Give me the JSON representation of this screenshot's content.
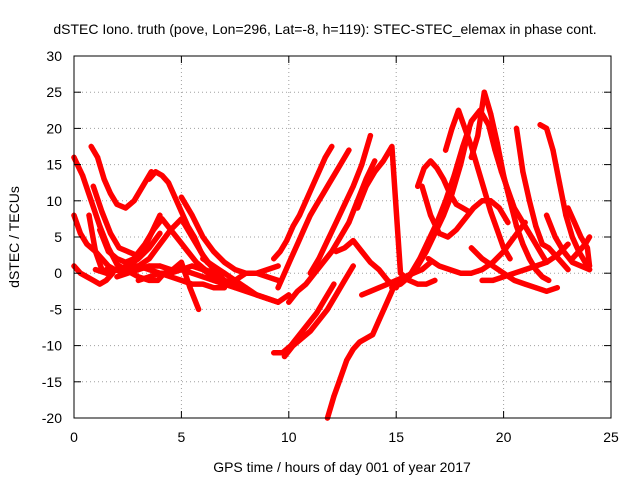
{
  "chart_data": {
    "type": "scatter",
    "title": "dSTEC Iono. truth (pove, Lon=296, Lat=-8, h=119): STEC-STEC_elemax in phase cont.",
    "xlabel": "GPS time / hours of day 001 of year 2017",
    "ylabel": "dSTEC  / TECUs",
    "xlim": [
      0,
      25
    ],
    "ylim": [
      -20,
      30
    ],
    "x_ticks": [
      0,
      5,
      10,
      15,
      20,
      25
    ],
    "y_ticks": [
      -20,
      -15,
      -10,
      -5,
      0,
      5,
      10,
      15,
      20,
      25,
      30
    ],
    "grid": true,
    "grid_style": "dotted",
    "marker": "plus",
    "color": "#ff0000",
    "series": [
      {
        "x": [
          0.0,
          0.4,
          0.8,
          1.2,
          1.6,
          2.0,
          2.5,
          3.0,
          3.5,
          3.9,
          4.2,
          4.6,
          5.0,
          5.4,
          5.8
        ],
        "values": [
          16.0,
          13.5,
          10.0,
          6.5,
          3.5,
          1.2,
          0.3,
          -0.5,
          -1.0,
          -1.0,
          0.0,
          0.5,
          1.5,
          -2.0,
          -5.0
        ]
      },
      {
        "x": [
          0.0,
          0.3,
          0.6,
          1.0,
          1.3,
          1.6,
          1.9,
          2.2
        ],
        "values": [
          8.0,
          5.5,
          4.0,
          3.0,
          2.0,
          1.0,
          0.5,
          0.2
        ]
      },
      {
        "x": [
          0.0,
          0.3,
          0.6,
          0.9,
          1.2,
          1.5,
          1.8
        ],
        "values": [
          1.0,
          0.0,
          -0.5,
          -1.0,
          -1.5,
          -1.0,
          0.0
        ]
      },
      {
        "x": [
          0.8,
          1.1,
          1.4,
          1.7,
          2.0,
          2.4,
          2.8,
          3.2,
          3.6
        ],
        "values": [
          17.5,
          16.0,
          13.0,
          11.0,
          9.5,
          9.0,
          10.0,
          12.0,
          14.0
        ]
      },
      {
        "x": [
          0.7,
          1.0,
          1.3,
          1.6,
          2.0,
          2.5,
          3.0,
          3.5,
          4.0
        ],
        "values": [
          8.0,
          3.0,
          0.5,
          0.0,
          0.5,
          1.0,
          2.0,
          3.5,
          5.5
        ]
      },
      {
        "x": [
          0.9,
          1.3,
          1.7,
          2.1,
          2.5,
          2.9,
          3.3,
          3.7,
          4.1,
          4.5,
          4.9,
          5.3,
          5.7,
          6.1,
          6.5
        ],
        "values": [
          12.0,
          8.5,
          5.5,
          3.5,
          3.0,
          2.5,
          4.0,
          6.0,
          7.5,
          6.0,
          4.5,
          3.0,
          1.5,
          0.5,
          0.0
        ]
      },
      {
        "x": [
          1.2,
          1.6,
          2.0,
          2.4,
          2.8,
          3.2,
          3.6,
          4.0
        ],
        "values": [
          6.0,
          3.0,
          2.0,
          1.5,
          2.0,
          3.0,
          5.5,
          8.0
        ]
      },
      {
        "x": [
          1.5,
          2.0,
          2.5,
          3.0,
          3.5,
          4.0,
          4.5,
          5.0,
          5.5,
          6.0,
          6.5,
          7.0
        ],
        "values": [
          0.5,
          0.5,
          1.0,
          1.0,
          0.5,
          0.0,
          -0.5,
          -1.0,
          -1.5,
          -1.5,
          -2.0,
          -2.0
        ]
      },
      {
        "x": [
          1.0,
          1.5,
          2.0,
          2.5,
          3.0,
          3.5,
          4.0,
          4.5,
          5.0,
          5.5,
          6.0,
          6.5,
          7.0,
          7.5,
          8.0
        ],
        "values": [
          0.5,
          0.0,
          0.5,
          0.5,
          1.0,
          2.0,
          4.0,
          6.0,
          7.5,
          5.0,
          2.5,
          0.5,
          -1.0,
          -1.5,
          -2.0
        ]
      },
      {
        "x": [
          3.5,
          3.8,
          4.1,
          4.4,
          4.7,
          5.0,
          5.3,
          5.6,
          5.9,
          6.2,
          6.6,
          7.0
        ],
        "values": [
          13.0,
          14.0,
          13.5,
          12.5,
          10.5,
          8.5,
          6.5,
          5.0,
          3.0,
          1.5,
          0.5,
          0.0
        ]
      },
      {
        "x": [
          2.0,
          2.5,
          3.0,
          3.5,
          4.0,
          4.5,
          5.0,
          5.5,
          6.0,
          6.5,
          7.0,
          7.5,
          8.0,
          8.5,
          9.0,
          9.5
        ],
        "values": [
          -0.5,
          0.0,
          0.5,
          1.0,
          1.0,
          0.5,
          0.5,
          0.0,
          -0.5,
          -1.0,
          -1.5,
          -1.0,
          0.0,
          0.0,
          -0.5,
          -1.0
        ]
      },
      {
        "x": [
          3.0,
          3.5,
          4.0,
          4.5,
          5.0,
          5.5,
          6.0,
          6.5,
          7.0,
          7.5,
          8.0,
          8.5,
          9.0,
          9.5
        ],
        "values": [
          -1.0,
          -0.5,
          0.0,
          0.0,
          0.5,
          1.0,
          0.5,
          -0.5,
          -1.5,
          -2.0,
          -2.5,
          -3.0,
          -3.5,
          -4.0
        ]
      },
      {
        "x": [
          5.0,
          5.5,
          6.0,
          6.5,
          7.0,
          7.5,
          8.0,
          8.5,
          9.0,
          9.5
        ],
        "values": [
          10.5,
          8.0,
          5.0,
          3.0,
          1.5,
          0.5,
          0.0,
          0.0,
          0.5,
          1.0
        ]
      },
      {
        "x": [
          6.0,
          6.5,
          7.0,
          7.5,
          8.0,
          8.5,
          9.0,
          9.5,
          10.0
        ],
        "values": [
          2.0,
          1.0,
          0.0,
          -1.0,
          -2.0,
          -3.0,
          -3.5,
          -4.0,
          -3.0
        ]
      },
      {
        "x": [
          9.3,
          9.6,
          9.9,
          10.2,
          10.5,
          10.8,
          11.1,
          11.4,
          11.7,
          12.0
        ],
        "values": [
          2.0,
          3.0,
          4.5,
          6.5,
          8.0,
          10.0,
          12.0,
          14.0,
          16.0,
          17.5
        ]
      },
      {
        "x": [
          9.5,
          9.8,
          10.1,
          10.4,
          10.7,
          11.0,
          11.3,
          11.6,
          11.9,
          12.2,
          12.5,
          12.8
        ],
        "values": [
          -2.0,
          0.0,
          2.0,
          4.0,
          6.0,
          8.0,
          9.5,
          11.0,
          12.5,
          14.0,
          15.5,
          17.0
        ]
      },
      {
        "x": [
          9.3,
          9.7,
          10.1,
          10.5,
          10.9,
          11.3,
          11.7,
          12.1
        ],
        "values": [
          -11.0,
          -11.0,
          -10.0,
          -8.5,
          -7.0,
          -5.5,
          -3.5,
          -1.5
        ]
      },
      {
        "x": [
          9.8,
          10.2,
          10.6,
          11.0,
          11.4,
          11.8,
          12.2,
          12.6,
          13.0
        ],
        "values": [
          -11.5,
          -10.0,
          -9.0,
          -8.0,
          -6.5,
          -5.0,
          -3.0,
          -1.0,
          1.0
        ]
      },
      {
        "x": [
          10.0,
          10.4,
          10.8,
          11.2,
          11.6,
          12.0,
          12.4,
          12.8,
          13.2,
          13.6,
          14.0
        ],
        "values": [
          -4.0,
          -2.5,
          -1.5,
          0.0,
          1.5,
          3.0,
          5.0,
          7.0,
          10.0,
          13.0,
          15.5
        ]
      },
      {
        "x": [
          11.0,
          11.4,
          11.8,
          12.2,
          12.6,
          13.0,
          13.4,
          13.8
        ],
        "values": [
          0.0,
          2.0,
          4.5,
          7.0,
          9.5,
          12.0,
          15.0,
          19.0
        ]
      },
      {
        "x": [
          11.8,
          12.1,
          12.4,
          12.7,
          13.0,
          13.3,
          13.6,
          13.9,
          14.2,
          14.5,
          14.8,
          15.0
        ],
        "values": [
          -20.0,
          -17.0,
          -14.5,
          -12.0,
          -10.5,
          -9.5,
          -9.0,
          -8.5,
          -6.5,
          -4.5,
          -2.5,
          -1.0
        ]
      },
      {
        "x": [
          12.2,
          12.6,
          13.0,
          13.4,
          13.8,
          14.2,
          14.6,
          15.0
        ],
        "values": [
          3.0,
          3.5,
          4.5,
          3.0,
          1.5,
          0.5,
          -1.0,
          -2.0
        ]
      },
      {
        "x": [
          13.4,
          13.8,
          14.2,
          14.6,
          15.0,
          15.4,
          15.8,
          16.2,
          16.6
        ],
        "values": [
          -3.0,
          -2.5,
          -2.0,
          -1.5,
          -1.0,
          -0.5,
          0.0,
          0.5,
          1.5
        ]
      },
      {
        "x": [
          13.2,
          13.6,
          14.0,
          14.4,
          14.8,
          15.2,
          15.6,
          16.0,
          16.4,
          16.8
        ],
        "values": [
          9.0,
          12.0,
          14.0,
          15.5,
          17.5,
          0.0,
          -1.0,
          -1.5,
          -1.5,
          -1.0
        ]
      },
      {
        "x": [
          14.8,
          15.2,
          15.6,
          16.0,
          16.4,
          16.8,
          17.2,
          17.6,
          18.0,
          18.4
        ],
        "values": [
          -2.0,
          -1.5,
          -0.5,
          1.0,
          3.0,
          5.5,
          8.0,
          11.0,
          15.0,
          20.0
        ]
      },
      {
        "x": [
          15.3,
          15.7,
          16.1,
          16.5,
          16.9,
          17.3,
          17.7,
          18.1,
          18.5,
          18.9
        ],
        "values": [
          -1.0,
          0.0,
          2.0,
          4.5,
          7.0,
          10.0,
          13.5,
          17.5,
          21.0,
          22.5
        ]
      },
      {
        "x": [
          16.0,
          16.3,
          16.6,
          16.9,
          17.2,
          17.5,
          17.8,
          18.1,
          18.4
        ],
        "values": [
          12.0,
          14.5,
          15.5,
          14.5,
          13.0,
          11.0,
          9.5,
          9.0,
          8.5
        ]
      },
      {
        "x": [
          16.2,
          16.6,
          17.0,
          17.4,
          17.8,
          18.2,
          18.6,
          19.0,
          19.4,
          19.8,
          20.2
        ],
        "values": [
          12.0,
          8.0,
          5.5,
          5.0,
          6.0,
          7.5,
          9.0,
          10.0,
          10.0,
          9.0,
          7.0
        ]
      },
      {
        "x": [
          16.5,
          17.0,
          17.5,
          18.0,
          18.5,
          19.0,
          19.5,
          20.0,
          20.5,
          21.0
        ],
        "values": [
          2.0,
          1.0,
          0.5,
          0.0,
          0.0,
          0.5,
          1.5,
          3.0,
          5.0,
          7.0
        ]
      },
      {
        "x": [
          17.3,
          17.6,
          17.9,
          18.2,
          18.5,
          18.8,
          19.1,
          19.4,
          19.7,
          20.0,
          20.3
        ],
        "values": [
          17.0,
          20.0,
          22.5,
          20.0,
          17.5,
          14.5,
          11.5,
          8.5,
          6.0,
          3.5,
          2.0
        ]
      },
      {
        "x": [
          18.5,
          18.8,
          19.1,
          19.4,
          19.7,
          20.0,
          20.3,
          20.6,
          20.9,
          21.2,
          21.5,
          21.8,
          22.1
        ],
        "values": [
          16.0,
          19.0,
          25.0,
          22.0,
          18.0,
          13.5,
          10.0,
          6.5,
          4.0,
          2.0,
          0.5,
          -0.5,
          -1.0
        ]
      },
      {
        "x": [
          19.0,
          19.3,
          19.6,
          19.9,
          20.2,
          20.5,
          20.8,
          21.1,
          21.4,
          21.7,
          22.0
        ],
        "values": [
          22.0,
          20.5,
          17.0,
          14.0,
          11.5,
          9.0,
          7.5,
          6.0,
          4.5,
          3.0,
          1.5
        ]
      },
      {
        "x": [
          18.5,
          19.0,
          19.5,
          20.0,
          20.5,
          21.0,
          21.5,
          22.0,
          22.5
        ],
        "values": [
          3.5,
          2.0,
          1.0,
          0.0,
          -1.0,
          -1.5,
          -2.0,
          -2.5,
          -2.0
        ]
      },
      {
        "x": [
          19.0,
          19.5,
          20.0,
          20.5,
          21.0,
          21.5,
          22.0,
          22.5,
          23.0
        ],
        "values": [
          -1.0,
          -1.0,
          -0.5,
          0.0,
          0.5,
          1.0,
          1.5,
          2.5,
          4.0
        ]
      },
      {
        "x": [
          20.6,
          20.9,
          21.2,
          21.5,
          21.8,
          22.1,
          22.4,
          22.7,
          23.0
        ],
        "values": [
          20.0,
          14.0,
          10.0,
          6.5,
          4.0,
          3.5,
          2.5,
          1.5,
          0.5
        ]
      },
      {
        "x": [
          21.7,
          22.0,
          22.3,
          22.6,
          22.9,
          23.2,
          23.5,
          23.8,
          24.0
        ],
        "values": [
          20.5,
          20.0,
          17.0,
          12.5,
          8.0,
          5.0,
          3.0,
          1.5,
          0.5
        ]
      },
      {
        "x": [
          22.0,
          22.4,
          22.8,
          23.2,
          23.6,
          24.0
        ],
        "values": [
          8.0,
          5.0,
          3.0,
          1.5,
          1.0,
          0.5
        ]
      },
      {
        "x": [
          23.0,
          23.3,
          23.6,
          23.9,
          24.0
        ],
        "values": [
          9.0,
          7.0,
          5.0,
          3.5,
          1.0
        ]
      },
      {
        "x": [
          23.2,
          23.5,
          23.8,
          24.0
        ],
        "values": [
          2.0,
          3.0,
          4.0,
          5.0
        ]
      }
    ]
  }
}
